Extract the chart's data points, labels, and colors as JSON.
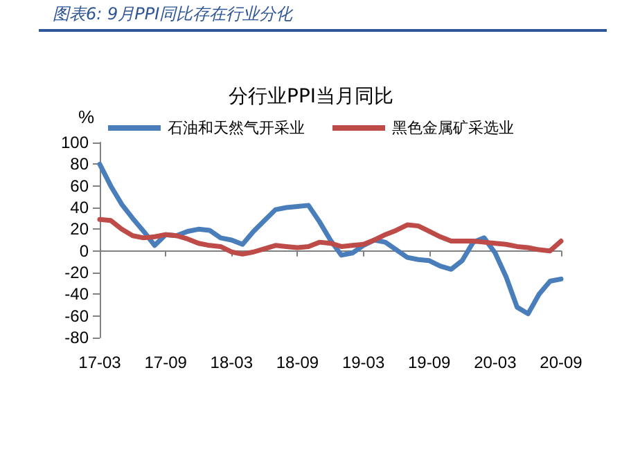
{
  "chart_data": {
    "type": "line",
    "title": "图表6: 9月PPI同比存在行业分化",
    "subtitle": "分行业PPI当月同比",
    "ylabel": "%",
    "categories": [
      "17-03",
      null,
      null,
      null,
      null,
      null,
      "17-09",
      null,
      null,
      null,
      null,
      null,
      "18-03",
      null,
      null,
      null,
      null,
      null,
      "18-09",
      null,
      null,
      null,
      null,
      null,
      "19-03",
      null,
      null,
      null,
      null,
      null,
      "19-09",
      null,
      null,
      null,
      null,
      null,
      "20-03",
      null,
      null,
      null,
      null,
      null,
      "20-09"
    ],
    "series": [
      {
        "name": "石油和天然气开采业",
        "color": "#4a7ebb",
        "values": [
          80,
          60,
          43,
          30,
          18,
          5,
          15,
          14,
          18,
          20,
          19,
          12,
          10,
          6,
          18,
          28,
          38,
          40,
          41,
          42,
          27,
          10,
          -4,
          -2,
          5,
          10,
          8,
          1,
          -6,
          -8,
          -9,
          -14,
          -17,
          -9,
          8,
          12,
          -2,
          -24,
          -52,
          -58,
          -40,
          -28,
          -26
        ]
      },
      {
        "name": "黑色金属矿采选业",
        "color": "#be4b48",
        "values": [
          29,
          28,
          20,
          14,
          12,
          13,
          15,
          14,
          11,
          7,
          5,
          4,
          -1,
          -3,
          -1,
          2,
          5,
          4,
          3,
          4,
          8,
          7,
          4,
          5,
          6,
          10,
          15,
          19,
          24,
          23,
          18,
          13,
          9,
          9,
          9,
          8,
          7,
          6,
          4,
          3,
          1,
          0,
          9
        ]
      }
    ],
    "ylim": [
      -80,
      100
    ],
    "yticks": [
      -80,
      -60,
      -40,
      -20,
      0,
      20,
      40,
      60,
      80,
      100
    ],
    "legend": "top",
    "marker": "none",
    "line_style": "solid"
  }
}
